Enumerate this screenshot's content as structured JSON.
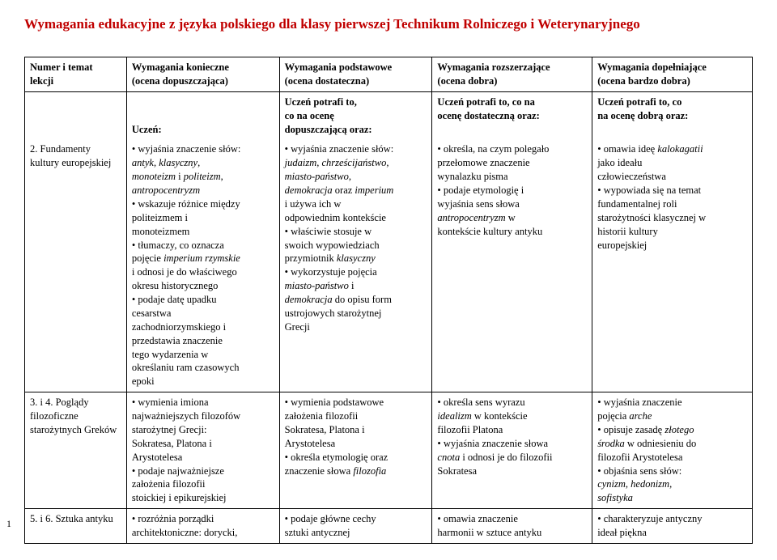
{
  "title": "Wymagania edukacyjne z języka polskiego dla klasy pierwszej Technikum Rolniczego i Weterynaryjnego",
  "page_number": "1",
  "headers": {
    "col1_l1": "Numer i temat",
    "col1_l2": "lekcji",
    "col2_l1": "Wymagania konieczne",
    "col2_l2": "(ocena dopuszczająca)",
    "col3_l1": "Wymagania podstawowe",
    "col3_l2": "(ocena dostateczna)",
    "col4_l1": "Wymagania rozszerzające",
    "col4_l2": "(ocena dobra)",
    "col5_l1": "Wymagania dopełniające",
    "col5_l2": "(ocena bardzo dobra)"
  },
  "subheaders": {
    "col2": "Uczeń:",
    "col3_l1": "Uczeń potrafi to,",
    "col3_l2": "co na ocenę",
    "col3_l3": "dopuszczającą oraz:",
    "col4_l1": "Uczeń potrafi to, co na",
    "col4_l2": "ocenę dostateczną oraz:",
    "col5_l1": "Uczeń potrafi to, co",
    "col5_l2": "na ocenę dobrą oraz:"
  },
  "row1": {
    "topic_l1": "2. Fundamenty",
    "topic_l2": "kultury europejskiej",
    "c2_1": "• wyjaśnia znaczenie słów:",
    "c2_2a": "antyk",
    "c2_2b": ", ",
    "c2_2c": "klasyczny",
    "c2_2d": ",",
    "c2_3a": "monoteizm",
    "c2_3b": " i ",
    "c2_3c": "politeizm",
    "c2_3d": ",",
    "c2_4": "antropocentryzm",
    "c2_5": "• wskazuje różnice między",
    "c2_6": "politeizmem i",
    "c2_7": "monoteizmem",
    "c2_8": "• tłumaczy, co oznacza",
    "c2_9a": "pojęcie ",
    "c2_9b": "imperium rzymskie",
    "c2_10": "i odnosi je do właściwego",
    "c2_11": "okresu historycznego",
    "c2_12": "• podaje datę upadku",
    "c2_13": "cesarstwa",
    "c2_14": "zachodniorzymskiego i",
    "c2_15": "przedstawia znaczenie",
    "c2_16": "tego wydarzenia w",
    "c2_17": "określaniu ram czasowych",
    "c2_18": "epoki",
    "c3_1": "• wyjaśnia znaczenie słów:",
    "c3_2a": "judaizm",
    "c3_2b": ", ",
    "c3_2c": "chrześcijaństwo",
    "c3_2d": ",",
    "c3_3a": "miasto-państwo",
    "c3_3b": ",",
    "c3_4a": "demokracja",
    "c3_4b": " oraz ",
    "c3_4c": "imperium",
    "c3_5": "i używa ich w",
    "c3_6": "odpowiednim kontekście",
    "c3_7": "• właściwie stosuje w",
    "c3_8": "swoich wypowiedziach",
    "c3_9a": "przymiotnik ",
    "c3_9b": "klasyczny",
    "c3_10": "• wykorzystuje pojęcia",
    "c3_11a": "miasto-państwo",
    "c3_11b": " i",
    "c3_12a": "demokracja",
    "c3_12b": " do opisu form",
    "c3_13": "ustrojowych starożytnej",
    "c3_14": "Grecji",
    "c4_1": "• określa, na czym polegało",
    "c4_2": "przełomowe znaczenie",
    "c4_3": "wynalazku pisma",
    "c4_4": "• podaje etymologię i",
    "c4_5": "wyjaśnia sens słowa",
    "c4_6a": "antropocentryzm",
    "c4_6b": " w",
    "c4_7": "kontekście kultury antyku",
    "c5_1a": "• omawia ideę ",
    "c5_1b": "kalokagatii",
    "c5_2": "jako ideału",
    "c5_3": "człowieczeństwa",
    "c5_4": "• wypowiada się na temat",
    "c5_5": "fundamentalnej roli",
    "c5_6": "starożytności klasycznej w",
    "c5_7": "historii kultury",
    "c5_8": "europejskiej"
  },
  "row2": {
    "topic_l1": "3. i 4. Poglądy",
    "topic_l2": "filozoficzne",
    "topic_l3": "starożytnych Greków",
    "c2_1": "• wymienia imiona",
    "c2_2": "najważniejszych filozofów",
    "c2_3": "starożytnej Grecji:",
    "c2_4": "Sokratesa, Platona i",
    "c2_5": "Arystotelesa",
    "c2_6": "• podaje najważniejsze",
    "c2_7": "założenia filozofii",
    "c2_8": "stoickiej i epikurejskiej",
    "c3_1": "• wymienia podstawowe",
    "c3_2": "założenia filozofii",
    "c3_3": "Sokratesa, Platona i",
    "c3_4": "Arystotelesa",
    "c3_5": "• określa etymologię oraz",
    "c3_6a": "znaczenie słowa ",
    "c3_6b": "filozofia",
    "c4_1": "• określa sens wyrazu",
    "c4_2a": "idealizm",
    "c4_2b": " w kontekście",
    "c4_3": "filozofii Platona",
    "c4_4": "• wyjaśnia znaczenie słowa",
    "c4_5a": "cnota",
    "c4_5b": " i odnosi je do filozofii",
    "c4_6": "Sokratesa",
    "c5_1": "• wyjaśnia znaczenie",
    "c5_2a": "pojęcia ",
    "c5_2b": "arche",
    "c5_3a": "• opisuje zasadę ",
    "c5_3b": "złotego",
    "c5_4a": "środka",
    "c5_4b": " w odniesieniu do",
    "c5_5": "filozofii Arystotelesa",
    "c5_6": "• objaśnia sens słów:",
    "c5_7a": "cynizm",
    "c5_7b": ", ",
    "c5_7c": "hedonizm",
    "c5_7d": ",",
    "c5_8": "sofistyka"
  },
  "row3": {
    "topic": "5. i 6. Sztuka antyku",
    "c2_1": "• rozróżnia porządki",
    "c2_2": "architektoniczne: dorycki,",
    "c3_1": "• podaje główne cechy",
    "c3_2": "sztuki antycznej",
    "c4_1": "• omawia znaczenie",
    "c4_2": "harmonii w sztuce antyku",
    "c5_1": "• charakteryzuje antyczny",
    "c5_2": "ideał piękna"
  }
}
